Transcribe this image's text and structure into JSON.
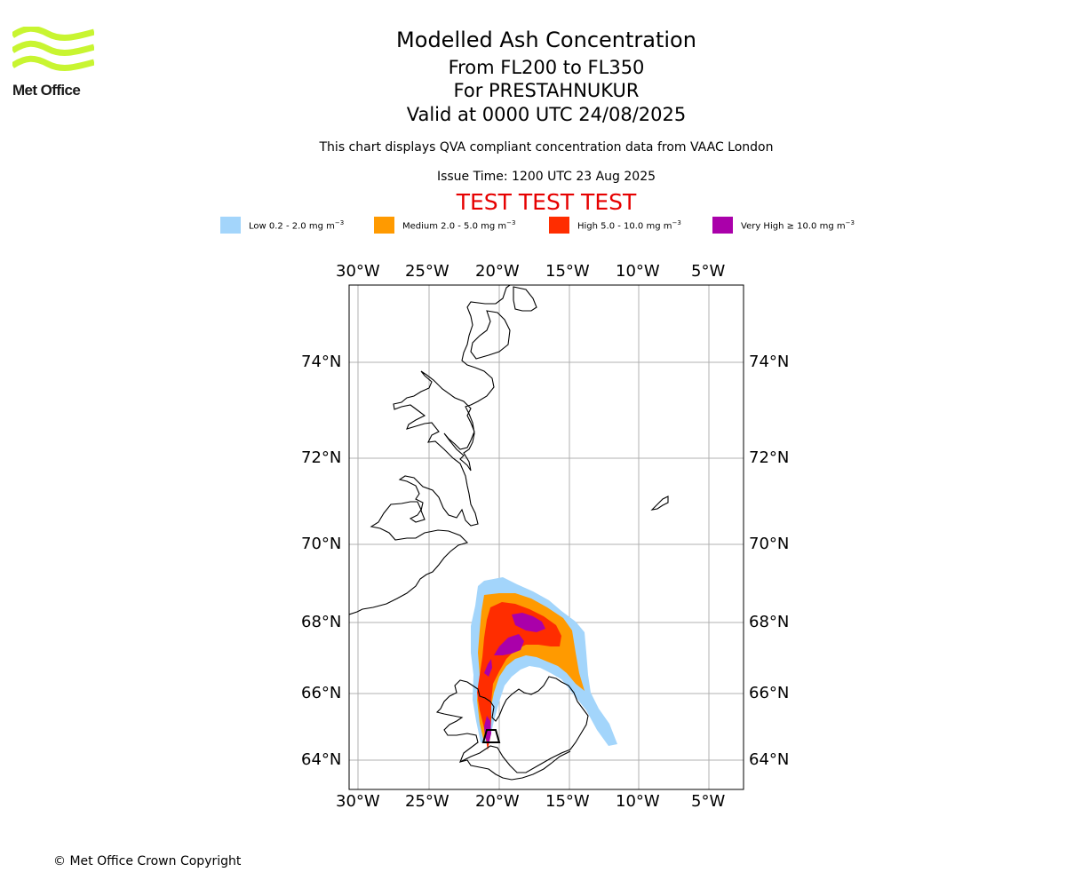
{
  "logo": {
    "text": "Met Office",
    "icon": "met-office-wave-logo",
    "color": "#c8f531"
  },
  "header": {
    "title": "Modelled Ash Concentration",
    "levels": "From FL200 to FL350",
    "volcano": "For PRESTAHNUKUR",
    "valid": "Valid at 0000 UTC 24/08/2025",
    "description": "This chart displays QVA compliant concentration data from VAAC London",
    "issue_time": "Issue Time: 1200 UTC 23 Aug 2025",
    "test_banner": "TEST TEST TEST"
  },
  "legend": [
    {
      "label": "Low 0.2 - 2.0 mg m",
      "sup": "−3",
      "color": "#a3d5fb"
    },
    {
      "label": "Medium 2.0 - 5.0 mg m",
      "sup": "−3",
      "color": "#ff9a00"
    },
    {
      "label": "High 5.0 - 10.0 mg m",
      "sup": "−3",
      "color": "#ff2d00"
    },
    {
      "label": "Very High ≥ 10.0 mg m",
      "sup": "−3",
      "color": "#aa00aa"
    }
  ],
  "map": {
    "lon_ticks": [
      "30°W",
      "25°W",
      "20°W",
      "15°W",
      "10°W",
      "5°W"
    ],
    "lat_ticks": [
      "74°N",
      "72°N",
      "70°N",
      "68°N",
      "66°N",
      "64°N"
    ],
    "extent": {
      "lon": [
        -30.6,
        -2.5
      ],
      "lat": [
        63.3,
        75.8
      ]
    },
    "grid": true,
    "volcano_marker": "triangle"
  },
  "footer": {
    "copyright": "© Met Office Crown Copyright"
  }
}
